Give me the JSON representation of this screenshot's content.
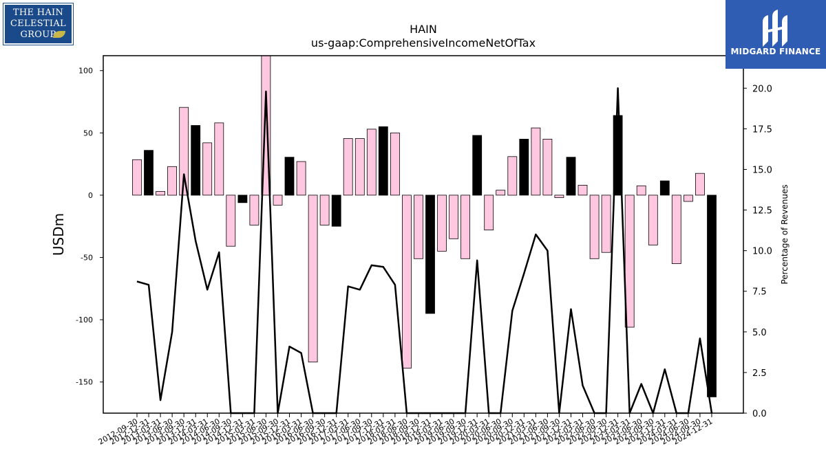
{
  "branding": {
    "company_logo_text": "THE HAIN\nCELESTIAL\nGROUP",
    "publisher_logo_text": "MIDGARD FINANCE"
  },
  "colors": {
    "bar_positive_fill": "#ffc8e0",
    "bar_negative_fill": "#000000",
    "line": "#000000",
    "publisher_blue": "#2f5db3",
    "company_blue": "#1b4a8a"
  },
  "chart_data": {
    "type": "bar",
    "title": "HAIN",
    "subtitle": "us-gaap:ComprehensiveIncomeNetOfTax",
    "ylabel": "USDm",
    "y2label": "Percentage of Revenues",
    "ylim": [
      -175,
      112
    ],
    "y2lim": [
      0,
      22
    ],
    "yticks": [
      100,
      50,
      0,
      -50,
      -100,
      -150
    ],
    "y2ticks": [
      20.0,
      17.5,
      15.0,
      12.5,
      10.0,
      7.5,
      5.0,
      2.5,
      0.0
    ],
    "categories": [
      "2012-09-30",
      "2012-12-31",
      "2013-03-31",
      "2013-06-30",
      "2013-09-30",
      "2013-12-31",
      "2014-03-31",
      "2014-06-30",
      "2014-09-30",
      "2014-12-31",
      "2015-03-31",
      "2015-06-30",
      "2015-09-30",
      "2015-12-31",
      "2016-03-31",
      "2016-06-30",
      "2016-09-30",
      "2016-12-31",
      "2017-03-31",
      "2017-06-30",
      "2017-09-30",
      "2017-12-31",
      "2018-03-31",
      "2018-06-30",
      "2018-09-30",
      "2018-12-31",
      "2019-03-31",
      "2019-06-30",
      "2019-09-30",
      "2019-12-31",
      "2020-03-31",
      "2020-06-30",
      "2020-09-30",
      "2020-12-31",
      "2021-03-31",
      "2021-06-30",
      "2021-09-30",
      "2021-12-31",
      "2022-03-31",
      "2022-06-30",
      "2022-09-30",
      "2022-12-31",
      "2023-03-31",
      "2023-06-30",
      "2023-09-30",
      "2023-12-31",
      "2024-03-31",
      "2024-06-30",
      "2024-09-30",
      "2024-12-31"
    ],
    "tick_labels": [
      "2012-09-30",
      "2012-12-31",
      "2013-03-31",
      "2013-06-30",
      "2013-09-30",
      "2013-12-31",
      "2014-03-31",
      "2014-06-30",
      "2014-09-30",
      "2014-12-31",
      "2015-03-31",
      "2015-06-30",
      "2015-09-30",
      "2015-12-31",
      "2016-03-31",
      "2016-06-30",
      "2016-09-30",
      "2016-12-31",
      "2017-03-31",
      "2017-06-30",
      "2017-09-30",
      "2017-12-31",
      "2018-03-31",
      "2018-06-30",
      "2018-09-30",
      "2018-12-31",
      "2019-03-31",
      "2019-06-30",
      "2019-09-30",
      "2019-12-31",
      "2020-03-31",
      "2020-06-30",
      "2020-09-30",
      "2020-12-31",
      "2021-03-31",
      "2021-06-30",
      "2021-09-30",
      "2021-12-31",
      "2022-03-31",
      "2022-06-30",
      "2022-09-30",
      "2022-12-31",
      "2023-03-31",
      "2023-06-30",
      "2023-09-30",
      "2023-12-31",
      "2024-03-31",
      "2024-06-30",
      "2024-09-30",
      "2024-12-31"
    ],
    "bar_values": [
      28.5,
      36,
      3,
      23,
      70.5,
      56,
      42,
      58,
      -41,
      -6,
      -24,
      130,
      -8,
      30.5,
      27,
      -134,
      -24,
      -25,
      45.5,
      45.5,
      53,
      55,
      50,
      -139,
      -51,
      -95,
      -45,
      -35,
      -51,
      48,
      -28,
      4,
      31,
      45,
      54,
      45,
      -2,
      30.5,
      8,
      -51,
      -46,
      64,
      -106,
      7.5,
      -40,
      11.5,
      -55,
      -5,
      17.5,
      -162
    ],
    "bar_highlight": [
      false,
      true,
      false,
      false,
      false,
      true,
      false,
      false,
      false,
      true,
      false,
      false,
      false,
      true,
      false,
      false,
      false,
      true,
      false,
      false,
      false,
      true,
      false,
      false,
      false,
      true,
      false,
      false,
      false,
      true,
      false,
      false,
      false,
      true,
      false,
      false,
      false,
      true,
      false,
      false,
      false,
      true,
      false,
      false,
      false,
      true,
      false,
      false,
      false,
      true
    ],
    "line_values": [
      8.1,
      7.9,
      0.8,
      5.0,
      14.7,
      10.6,
      7.6,
      9.9,
      0,
      0,
      0,
      19.8,
      0,
      4.1,
      3.7,
      0,
      0,
      0,
      7.8,
      7.6,
      9.1,
      9.0,
      7.9,
      0,
      0,
      0,
      0,
      0,
      0,
      9.4,
      0,
      0,
      6.3,
      8.6,
      11.0,
      10.0,
      0,
      6.4,
      1.7,
      0,
      0,
      20.0,
      0,
      1.8,
      0,
      2.7,
      0,
      0,
      4.6,
      0
    ],
    "grid": false,
    "legend": "none"
  }
}
